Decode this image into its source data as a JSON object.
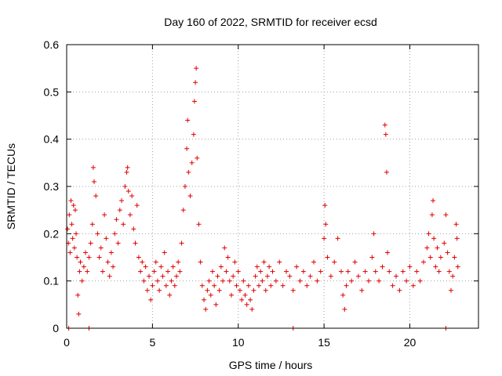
{
  "chart_data": {
    "type": "scatter",
    "title": "Day 160 of 2022, SRMTID for receiver ecsd",
    "xlabel": "GPS time / hours",
    "ylabel": "SRMTID / TECUs",
    "xlim": [
      0,
      24
    ],
    "ylim": [
      0,
      0.6
    ],
    "xticks": [
      0,
      5,
      10,
      15,
      20
    ],
    "xtick_labels": [
      "0",
      "5",
      "10",
      "15",
      "20"
    ],
    "yticks": [
      0,
      0.1,
      0.2,
      0.3,
      0.4,
      0.5,
      0.6
    ],
    "ytick_labels": [
      "0",
      "0.1",
      "0.2",
      "0.3",
      "0.4",
      "0.5",
      "0.6"
    ],
    "grid": true,
    "marker": "plus",
    "color": "#e00000",
    "series": [
      {
        "name": "SRMTID",
        "points": [
          [
            0.05,
            0.21
          ],
          [
            0.1,
            0.18
          ],
          [
            0.15,
            0.24
          ],
          [
            0.2,
            0.16
          ],
          [
            0.25,
            0.27
          ],
          [
            0.3,
            0.22
          ],
          [
            0.35,
            0.19
          ],
          [
            0.4,
            0.26
          ],
          [
            0.45,
            0.17
          ],
          [
            0.5,
            0.25
          ],
          [
            0.55,
            0.2
          ],
          [
            0.6,
            0.15
          ],
          [
            0.65,
            0.07
          ],
          [
            0.7,
            0.03
          ],
          [
            0.75,
            0.12
          ],
          [
            0.8,
            0.14
          ],
          [
            0.9,
            0.1
          ],
          [
            1.0,
            0.13
          ],
          [
            1.1,
            0.16
          ],
          [
            1.2,
            0.12
          ],
          [
            1.3,
            0.15
          ],
          [
            1.4,
            0.18
          ],
          [
            1.5,
            0.22
          ],
          [
            1.55,
            0.34
          ],
          [
            1.6,
            0.31
          ],
          [
            1.7,
            0.28
          ],
          [
            1.8,
            0.2
          ],
          [
            1.9,
            0.15
          ],
          [
            2.0,
            0.17
          ],
          [
            2.1,
            0.12
          ],
          [
            2.2,
            0.24
          ],
          [
            2.3,
            0.19
          ],
          [
            2.4,
            0.14
          ],
          [
            2.5,
            0.11
          ],
          [
            2.6,
            0.16
          ],
          [
            2.7,
            0.13
          ],
          [
            2.8,
            0.2
          ],
          [
            2.9,
            0.23
          ],
          [
            3.0,
            0.18
          ],
          [
            3.1,
            0.25
          ],
          [
            3.2,
            0.27
          ],
          [
            3.3,
            0.22
          ],
          [
            3.4,
            0.3
          ],
          [
            3.5,
            0.33
          ],
          [
            3.55,
            0.34
          ],
          [
            3.6,
            0.29
          ],
          [
            3.7,
            0.24
          ],
          [
            3.8,
            0.28
          ],
          [
            3.9,
            0.21
          ],
          [
            4.0,
            0.18
          ],
          [
            4.1,
            0.26
          ],
          [
            4.2,
            0.15
          ],
          [
            4.3,
            0.12
          ],
          [
            4.4,
            0.14
          ],
          [
            4.5,
            0.1
          ],
          [
            4.6,
            0.13
          ],
          [
            4.7,
            0.08
          ],
          [
            4.8,
            0.11
          ],
          [
            4.9,
            0.06
          ],
          [
            5.0,
            0.09
          ],
          [
            5.1,
            0.12
          ],
          [
            5.2,
            0.14
          ],
          [
            5.3,
            0.1
          ],
          [
            5.4,
            0.08
          ],
          [
            5.5,
            0.13
          ],
          [
            5.6,
            0.11
          ],
          [
            5.7,
            0.16
          ],
          [
            5.8,
            0.09
          ],
          [
            5.9,
            0.12
          ],
          [
            6.0,
            0.07
          ],
          [
            6.1,
            0.1
          ],
          [
            6.2,
            0.13
          ],
          [
            6.3,
            0.09
          ],
          [
            6.4,
            0.11
          ],
          [
            6.5,
            0.14
          ],
          [
            6.6,
            0.12
          ],
          [
            6.7,
            0.18
          ],
          [
            6.8,
            0.25
          ],
          [
            6.9,
            0.3
          ],
          [
            7.0,
            0.38
          ],
          [
            7.05,
            0.44
          ],
          [
            7.1,
            0.33
          ],
          [
            7.2,
            0.28
          ],
          [
            7.3,
            0.35
          ],
          [
            7.4,
            0.41
          ],
          [
            7.45,
            0.48
          ],
          [
            7.5,
            0.52
          ],
          [
            7.55,
            0.55
          ],
          [
            7.6,
            0.36
          ],
          [
            7.7,
            0.22
          ],
          [
            7.8,
            0.14
          ],
          [
            7.9,
            0.09
          ],
          [
            8.0,
            0.06
          ],
          [
            8.1,
            0.04
          ],
          [
            8.2,
            0.08
          ],
          [
            8.3,
            0.1
          ],
          [
            8.4,
            0.07
          ],
          [
            8.5,
            0.12
          ],
          [
            8.6,
            0.09
          ],
          [
            8.7,
            0.05
          ],
          [
            8.8,
            0.11
          ],
          [
            8.9,
            0.08
          ],
          [
            9.0,
            0.13
          ],
          [
            9.1,
            0.1
          ],
          [
            9.2,
            0.17
          ],
          [
            9.3,
            0.12
          ],
          [
            9.4,
            0.15
          ],
          [
            9.5,
            0.1
          ],
          [
            9.6,
            0.07
          ],
          [
            9.7,
            0.11
          ],
          [
            9.8,
            0.14
          ],
          [
            9.9,
            0.09
          ],
          [
            10.0,
            0.12
          ],
          [
            10.1,
            0.08
          ],
          [
            10.2,
            0.06
          ],
          [
            10.3,
            0.1
          ],
          [
            10.4,
            0.07
          ],
          [
            10.5,
            0.05
          ],
          [
            10.6,
            0.09
          ],
          [
            10.7,
            0.06
          ],
          [
            10.8,
            0.04
          ],
          [
            10.9,
            0.08
          ],
          [
            11.0,
            0.11
          ],
          [
            11.1,
            0.13
          ],
          [
            11.2,
            0.09
          ],
          [
            11.3,
            0.12
          ],
          [
            11.4,
            0.1
          ],
          [
            11.5,
            0.14
          ],
          [
            11.6,
            0.08
          ],
          [
            11.7,
            0.11
          ],
          [
            11.8,
            0.13
          ],
          [
            11.9,
            0.09
          ],
          [
            12.0,
            0.12
          ],
          [
            12.2,
            0.1
          ],
          [
            12.4,
            0.14
          ],
          [
            12.6,
            0.09
          ],
          [
            12.8,
            0.12
          ],
          [
            13.0,
            0.11
          ],
          [
            13.2,
            0.08
          ],
          [
            13.4,
            0.13
          ],
          [
            13.6,
            0.1
          ],
          [
            13.8,
            0.12
          ],
          [
            14.0,
            0.09
          ],
          [
            14.2,
            0.11
          ],
          [
            14.4,
            0.14
          ],
          [
            14.6,
            0.1
          ],
          [
            14.8,
            0.12
          ],
          [
            15.0,
            0.19
          ],
          [
            15.05,
            0.26
          ],
          [
            15.1,
            0.22
          ],
          [
            15.2,
            0.15
          ],
          [
            15.4,
            0.11
          ],
          [
            15.6,
            0.14
          ],
          [
            15.8,
            0.19
          ],
          [
            16.0,
            0.12
          ],
          [
            16.1,
            0.07
          ],
          [
            16.2,
            0.04
          ],
          [
            16.3,
            0.09
          ],
          [
            16.4,
            0.12
          ],
          [
            16.6,
            0.1
          ],
          [
            16.8,
            0.14
          ],
          [
            17.0,
            0.11
          ],
          [
            17.2,
            0.08
          ],
          [
            17.4,
            0.12
          ],
          [
            17.6,
            0.1
          ],
          [
            17.8,
            0.15
          ],
          [
            17.9,
            0.2
          ],
          [
            18.0,
            0.12
          ],
          [
            18.2,
            0.1
          ],
          [
            18.4,
            0.13
          ],
          [
            18.55,
            0.43
          ],
          [
            18.6,
            0.41
          ],
          [
            18.65,
            0.33
          ],
          [
            18.7,
            0.16
          ],
          [
            18.8,
            0.12
          ],
          [
            19.0,
            0.09
          ],
          [
            19.2,
            0.11
          ],
          [
            19.4,
            0.08
          ],
          [
            19.6,
            0.12
          ],
          [
            19.8,
            0.1
          ],
          [
            20.0,
            0.13
          ],
          [
            20.2,
            0.09
          ],
          [
            20.4,
            0.12
          ],
          [
            20.6,
            0.1
          ],
          [
            20.8,
            0.14
          ],
          [
            21.0,
            0.17
          ],
          [
            21.1,
            0.2
          ],
          [
            21.2,
            0.15
          ],
          [
            21.3,
            0.24
          ],
          [
            21.35,
            0.27
          ],
          [
            21.4,
            0.19
          ],
          [
            21.5,
            0.13
          ],
          [
            21.6,
            0.17
          ],
          [
            21.7,
            0.12
          ],
          [
            21.8,
            0.15
          ],
          [
            22.0,
            0.18
          ],
          [
            22.1,
            0.24
          ],
          [
            22.2,
            0.16
          ],
          [
            22.3,
            0.12
          ],
          [
            22.4,
            0.08
          ],
          [
            22.5,
            0.11
          ],
          [
            22.6,
            0.15
          ],
          [
            22.7,
            0.22
          ],
          [
            22.75,
            0.19
          ],
          [
            22.8,
            0.13
          ],
          [
            0.12,
            0
          ],
          [
            1.3,
            0
          ],
          [
            13.2,
            0
          ],
          [
            22.1,
            0
          ]
        ]
      }
    ]
  }
}
